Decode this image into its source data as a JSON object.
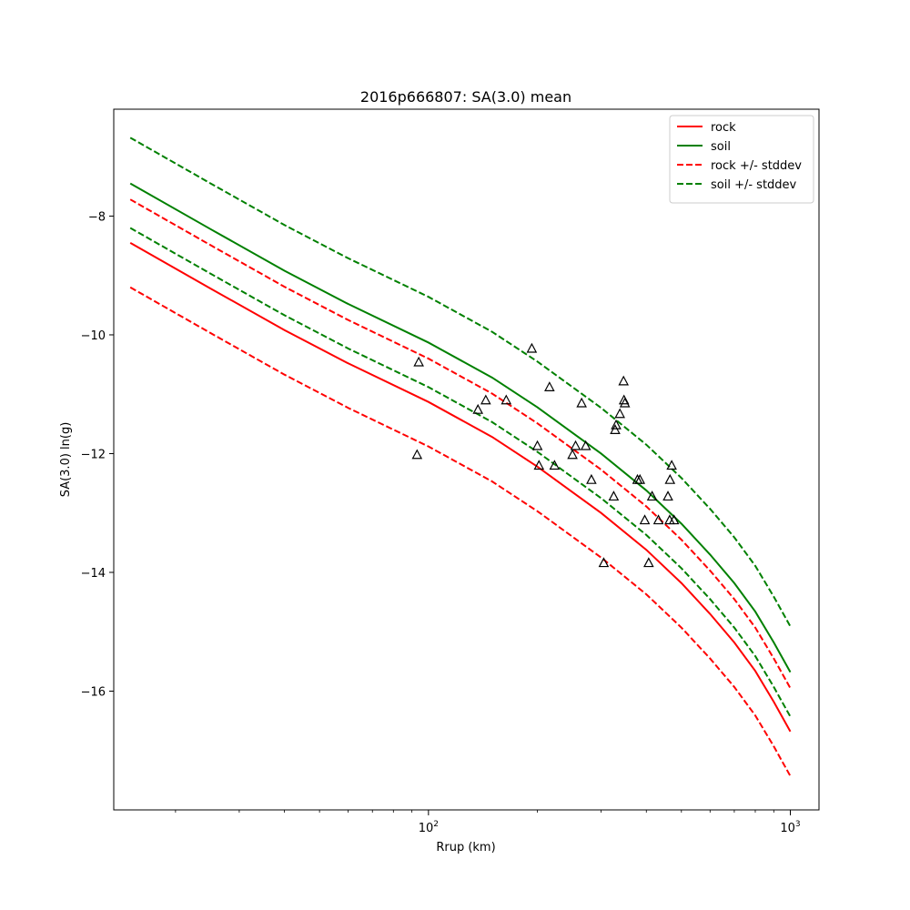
{
  "chart_data": {
    "type": "line",
    "title": "2016p666807: SA(3.0) mean",
    "xlabel": "Rrup (km)",
    "ylabel": "SA(3.0) ln(g)",
    "xscale": "log",
    "xlim": [
      13.5,
      1200
    ],
    "ylim": [
      -18.0,
      -6.2
    ],
    "x_ticks": [
      {
        "value": 100,
        "base": "10",
        "exp": "2"
      },
      {
        "value": 1000,
        "base": "10",
        "exp": "3"
      }
    ],
    "y_ticks": [
      -16,
      -14,
      -12,
      -10,
      -8
    ],
    "legend_position": "top-right",
    "grid": false,
    "series": [
      {
        "name": "rock",
        "color": "#ff0000",
        "dash": "solid",
        "x": [
          15,
          25,
          40,
          60,
          100,
          150,
          200,
          300,
          400,
          500,
          600,
          700,
          800,
          900,
          1000
        ],
        "y": [
          -8.45,
          -9.22,
          -9.92,
          -10.48,
          -11.13,
          -11.72,
          -12.22,
          -13.0,
          -13.62,
          -14.18,
          -14.7,
          -15.18,
          -15.66,
          -16.18,
          -16.68
        ]
      },
      {
        "name": "soil",
        "color": "#008000",
        "dash": "solid",
        "x": [
          15,
          25,
          40,
          60,
          100,
          150,
          200,
          300,
          400,
          500,
          600,
          700,
          800,
          900,
          1000
        ],
        "y": [
          -7.45,
          -8.22,
          -8.92,
          -9.48,
          -10.13,
          -10.72,
          -11.22,
          -12.0,
          -12.62,
          -13.18,
          -13.7,
          -14.18,
          -14.66,
          -15.18,
          -15.68
        ]
      },
      {
        "name": "rock +/- stddev",
        "color": "#ff0000",
        "dash": "dashed",
        "x": [
          15,
          25,
          40,
          60,
          100,
          150,
          200,
          300,
          400,
          500,
          600,
          700,
          800,
          900,
          1000
        ],
        "y": [
          -7.72,
          -8.49,
          -9.19,
          -9.75,
          -10.4,
          -10.99,
          -11.49,
          -12.27,
          -12.89,
          -13.45,
          -13.97,
          -14.45,
          -14.93,
          -15.45,
          -15.95
        ]
      },
      {
        "name": "",
        "color": "#ff0000",
        "dash": "dashed",
        "x": [
          15,
          25,
          40,
          60,
          100,
          150,
          200,
          300,
          400,
          500,
          600,
          700,
          800,
          900,
          1000
        ],
        "y": [
          -9.2,
          -9.97,
          -10.67,
          -11.23,
          -11.88,
          -12.47,
          -12.97,
          -13.75,
          -14.37,
          -14.93,
          -15.45,
          -15.93,
          -16.41,
          -16.93,
          -17.43
        ]
      },
      {
        "name": "soil +/- stddev",
        "color": "#008000",
        "dash": "dashed",
        "x": [
          15,
          25,
          40,
          60,
          100,
          150,
          200,
          300,
          400,
          500,
          600,
          700,
          800,
          900,
          1000
        ],
        "y": [
          -6.68,
          -7.45,
          -8.15,
          -8.71,
          -9.36,
          -9.95,
          -10.45,
          -11.23,
          -11.85,
          -12.41,
          -12.93,
          -13.41,
          -13.89,
          -14.41,
          -14.91
        ]
      },
      {
        "name": "",
        "color": "#008000",
        "dash": "dashed",
        "x": [
          15,
          25,
          40,
          60,
          100,
          150,
          200,
          300,
          400,
          500,
          600,
          700,
          800,
          900,
          1000
        ],
        "y": [
          -8.2,
          -8.97,
          -9.67,
          -10.23,
          -10.88,
          -11.47,
          -11.97,
          -12.75,
          -13.37,
          -13.93,
          -14.45,
          -14.93,
          -15.41,
          -15.93,
          -16.43
        ]
      }
    ],
    "observations": {
      "marker": "triangle",
      "color": "#000000",
      "x": [
        93,
        94,
        137,
        144,
        164,
        193,
        200,
        202,
        216,
        223,
        250,
        255,
        265,
        272,
        282,
        305,
        325,
        328,
        330,
        338,
        346,
        347,
        349,
        378,
        384,
        396,
        406,
        415,
        432,
        459,
        464,
        465,
        470,
        477
      ],
      "y": [
        -12.02,
        -10.46,
        -11.26,
        -11.1,
        -11.1,
        -10.23,
        -11.87,
        -12.2,
        -10.88,
        -12.2,
        -12.02,
        -11.87,
        -11.15,
        -11.87,
        -12.44,
        -13.84,
        -12.72,
        -11.6,
        -11.52,
        -11.33,
        -10.78,
        -11.1,
        -11.15,
        -12.44,
        -12.44,
        -13.12,
        -13.84,
        -12.72,
        -13.12,
        -12.72,
        -13.12,
        -12.44,
        -12.2,
        -13.12
      ]
    }
  }
}
